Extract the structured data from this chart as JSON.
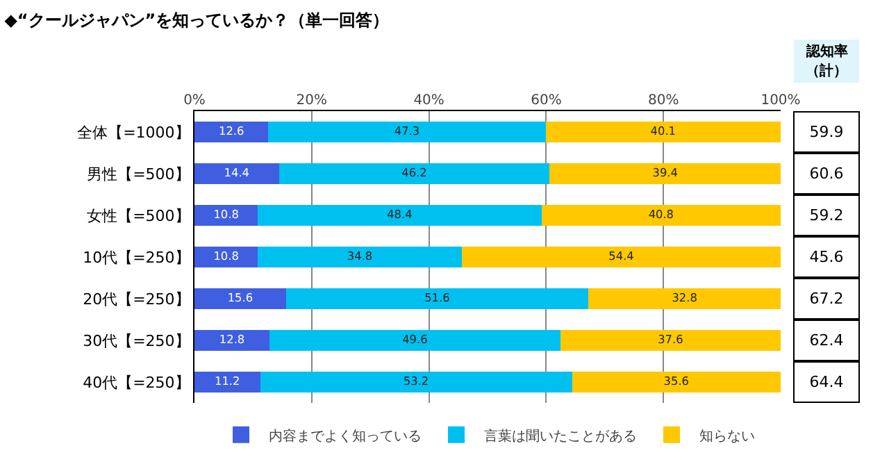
{
  "chart_data": {
    "type": "bar",
    "orientation": "horizontal",
    "stacked": true,
    "title": "◆“クールジャパン”を知っているか？（単一回答）",
    "categories": [
      "全体【=1000】",
      "男性【=500】",
      "女性【=500】",
      "10代【=250】",
      "20代【=250】",
      "30代【=250】",
      "40代【=250】"
    ],
    "series": [
      {
        "name": "内容までよく知っている",
        "color": "#3f5fe0",
        "values": [
          12.6,
          14.4,
          10.8,
          10.8,
          15.6,
          12.8,
          11.2
        ]
      },
      {
        "name": "言葉は聞いたことがある",
        "color": "#00c0f0",
        "values": [
          47.3,
          46.2,
          48.4,
          34.8,
          51.6,
          49.6,
          53.2
        ]
      },
      {
        "name": "知らない",
        "color": "#ffc800",
        "values": [
          40.1,
          39.4,
          40.8,
          54.4,
          32.8,
          37.6,
          35.6
        ]
      }
    ],
    "xlim": [
      0,
      100
    ],
    "xticks": [
      {
        "value": 0,
        "label": "0%"
      },
      {
        "value": 20,
        "label": "20%"
      },
      {
        "value": 40,
        "label": "40%"
      },
      {
        "value": 60,
        "label": "60%"
      },
      {
        "value": 80,
        "label": "80%"
      },
      {
        "value": 100,
        "label": "100%"
      }
    ],
    "grid": "x",
    "legend": "bottom",
    "data_labels": true,
    "annotations": [
      "認知率",
      "（計）",
      "59.9",
      "60.6",
      "59.2",
      "45.6",
      "67.2",
      "62.4",
      "64.4"
    ]
  }
}
